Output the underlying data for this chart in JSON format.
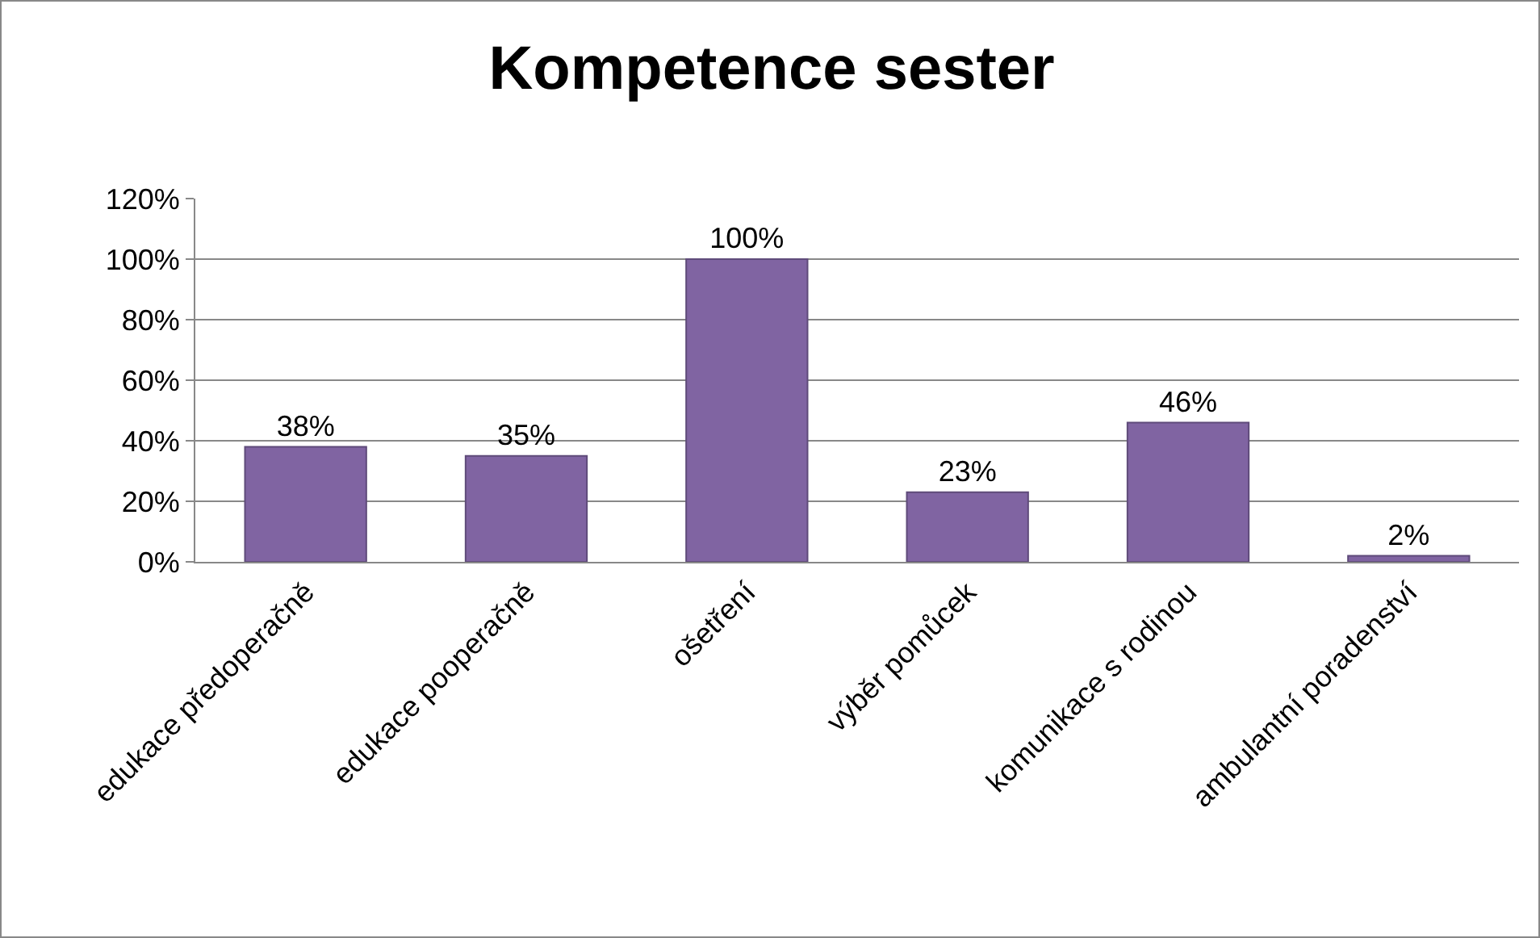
{
  "chart_data": {
    "type": "bar",
    "title": "Kompetence sester",
    "categories": [
      "edukace předoperačně",
      "edukace pooperačně",
      "ošetření",
      "výběr pomůcek",
      "komunikace s rodinou",
      "ambulantní poradenství"
    ],
    "values": [
      38,
      35,
      100,
      23,
      46,
      2
    ],
    "value_labels": [
      "38%",
      "35%",
      "100%",
      "23%",
      "46%",
      "2%"
    ],
    "color": "#8064a2",
    "ylim": [
      0,
      120
    ],
    "yticks": [
      {
        "value": 0,
        "label": "0%"
      },
      {
        "value": 20,
        "label": "20%"
      },
      {
        "value": 40,
        "label": "40%"
      },
      {
        "value": 60,
        "label": "60%"
      },
      {
        "value": 80,
        "label": "80%"
      },
      {
        "value": 100,
        "label": "100%"
      },
      {
        "value": 120,
        "label": "120%"
      }
    ],
    "grid": "y",
    "legend": false
  }
}
